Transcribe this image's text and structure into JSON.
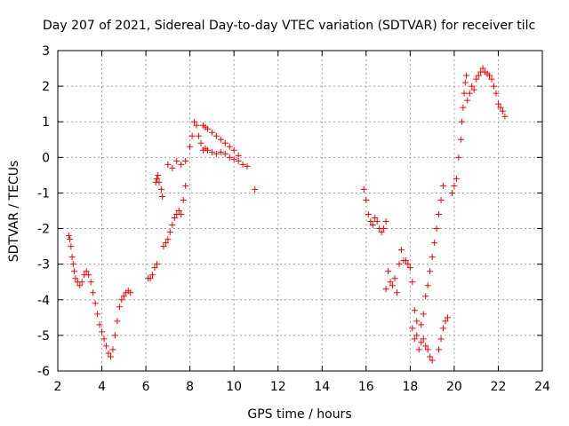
{
  "chart_data": {
    "type": "scatter",
    "title": "Day 207 of 2021, Sidereal Day-to-day VTEC variation (SDTVAR) for receiver tilc",
    "xlabel": "GPS time / hours",
    "ylabel": "SDTVAR / TECUs",
    "xlim": [
      2,
      24
    ],
    "ylim": [
      -6,
      3
    ],
    "xticks": [
      2,
      4,
      6,
      8,
      10,
      12,
      14,
      16,
      18,
      20,
      22,
      24
    ],
    "yticks": [
      -6,
      -5,
      -4,
      -3,
      -2,
      -1,
      0,
      1,
      2,
      3
    ],
    "grid": true,
    "marker": "+",
    "marker_color": "#ff0000",
    "series": [
      {
        "name": "SDTVAR",
        "points": [
          [
            2.5,
            -2.2
          ],
          [
            2.55,
            -2.3
          ],
          [
            2.6,
            -2.5
          ],
          [
            2.65,
            -2.8
          ],
          [
            2.7,
            -3.0
          ],
          [
            2.75,
            -3.2
          ],
          [
            2.8,
            -3.4
          ],
          [
            2.9,
            -3.5
          ],
          [
            3.0,
            -3.6
          ],
          [
            3.1,
            -3.5
          ],
          [
            3.2,
            -3.3
          ],
          [
            3.3,
            -3.2
          ],
          [
            3.4,
            -3.3
          ],
          [
            3.5,
            -3.5
          ],
          [
            3.6,
            -3.8
          ],
          [
            3.7,
            -4.1
          ],
          [
            3.8,
            -4.4
          ],
          [
            3.9,
            -4.7
          ],
          [
            4.0,
            -4.9
          ],
          [
            4.1,
            -5.1
          ],
          [
            4.2,
            -5.3
          ],
          [
            4.3,
            -5.5
          ],
          [
            4.4,
            -5.6
          ],
          [
            4.5,
            -5.4
          ],
          [
            4.6,
            -5.0
          ],
          [
            4.7,
            -4.6
          ],
          [
            4.8,
            -4.2
          ],
          [
            4.9,
            -4.0
          ],
          [
            5.0,
            -3.9
          ],
          [
            5.1,
            -3.8
          ],
          [
            5.2,
            -3.75
          ],
          [
            5.3,
            -3.8
          ],
          [
            6.1,
            -3.4
          ],
          [
            6.2,
            -3.4
          ],
          [
            6.3,
            -3.3
          ],
          [
            6.4,
            -3.1
          ],
          [
            6.5,
            -3.0
          ],
          [
            6.45,
            -0.7
          ],
          [
            6.5,
            -0.6
          ],
          [
            6.55,
            -0.5
          ],
          [
            6.6,
            -0.7
          ],
          [
            6.7,
            -0.9
          ],
          [
            6.75,
            -1.1
          ],
          [
            6.8,
            -2.5
          ],
          [
            6.9,
            -2.4
          ],
          [
            7.0,
            -2.3
          ],
          [
            7.1,
            -2.1
          ],
          [
            7.2,
            -1.9
          ],
          [
            7.3,
            -1.7
          ],
          [
            7.4,
            -1.6
          ],
          [
            7.5,
            -1.5
          ],
          [
            7.6,
            -1.6
          ],
          [
            7.7,
            -1.2
          ],
          [
            7.8,
            -0.8
          ],
          [
            7.0,
            -0.2
          ],
          [
            7.2,
            -0.3
          ],
          [
            7.4,
            -0.1
          ],
          [
            7.6,
            -0.2
          ],
          [
            7.8,
            -0.1
          ],
          [
            8.0,
            0.3
          ],
          [
            8.1,
            0.6
          ],
          [
            8.2,
            1.0
          ],
          [
            8.3,
            0.9
          ],
          [
            8.4,
            0.6
          ],
          [
            8.5,
            0.4
          ],
          [
            8.6,
            0.2
          ],
          [
            8.7,
            0.25
          ],
          [
            8.8,
            0.2
          ],
          [
            9.0,
            0.15
          ],
          [
            9.2,
            0.1
          ],
          [
            9.4,
            0.15
          ],
          [
            9.6,
            0.1
          ],
          [
            9.8,
            0.0
          ],
          [
            10.0,
            -0.05
          ],
          [
            10.2,
            -0.1
          ],
          [
            10.4,
            -0.2
          ],
          [
            10.6,
            -0.25
          ],
          [
            8.6,
            0.9
          ],
          [
            8.7,
            0.85
          ],
          [
            8.8,
            0.8
          ],
          [
            9.0,
            0.7
          ],
          [
            9.2,
            0.6
          ],
          [
            9.4,
            0.5
          ],
          [
            9.6,
            0.4
          ],
          [
            9.8,
            0.3
          ],
          [
            10.0,
            0.2
          ],
          [
            10.2,
            0.05
          ],
          [
            10.95,
            -0.9
          ],
          [
            15.9,
            -0.9
          ],
          [
            16.0,
            -1.2
          ],
          [
            16.1,
            -1.6
          ],
          [
            16.2,
            -1.8
          ],
          [
            16.3,
            -1.9
          ],
          [
            16.4,
            -1.7
          ],
          [
            16.5,
            -1.8
          ],
          [
            16.6,
            -2.0
          ],
          [
            16.7,
            -2.1
          ],
          [
            16.8,
            -2.0
          ],
          [
            16.9,
            -1.8
          ],
          [
            16.9,
            -3.7
          ],
          [
            17.0,
            -3.2
          ],
          [
            17.1,
            -3.5
          ],
          [
            17.2,
            -3.6
          ],
          [
            17.3,
            -3.4
          ],
          [
            17.4,
            -3.8
          ],
          [
            17.5,
            -3.0
          ],
          [
            17.6,
            -2.6
          ],
          [
            17.7,
            -2.9
          ],
          [
            17.8,
            -2.9
          ],
          [
            17.9,
            -3.0
          ],
          [
            18.0,
            -3.1
          ],
          [
            18.1,
            -3.5
          ],
          [
            18.2,
            -4.3
          ],
          [
            18.3,
            -5.0
          ],
          [
            18.4,
            -5.4
          ],
          [
            18.5,
            -5.2
          ],
          [
            18.6,
            -5.1
          ],
          [
            18.7,
            -5.3
          ],
          [
            18.8,
            -5.4
          ],
          [
            18.9,
            -5.6
          ],
          [
            19.0,
            -5.7
          ],
          [
            18.1,
            -4.8
          ],
          [
            18.2,
            -5.1
          ],
          [
            18.3,
            -4.6
          ],
          [
            18.5,
            -4.7
          ],
          [
            18.6,
            -4.4
          ],
          [
            18.7,
            -3.9
          ],
          [
            18.8,
            -3.6
          ],
          [
            18.9,
            -3.2
          ],
          [
            19.0,
            -2.8
          ],
          [
            19.1,
            -2.4
          ],
          [
            19.2,
            -2.0
          ],
          [
            19.3,
            -1.6
          ],
          [
            19.4,
            -1.2
          ],
          [
            19.5,
            -0.8
          ],
          [
            19.3,
            -5.4
          ],
          [
            19.4,
            -5.1
          ],
          [
            19.5,
            -4.8
          ],
          [
            19.6,
            -4.6
          ],
          [
            19.7,
            -4.5
          ],
          [
            19.9,
            -1.0
          ],
          [
            20.0,
            -0.8
          ],
          [
            20.1,
            -0.6
          ],
          [
            20.2,
            0.0
          ],
          [
            20.3,
            0.5
          ],
          [
            20.35,
            1.0
          ],
          [
            20.4,
            1.4
          ],
          [
            20.45,
            1.8
          ],
          [
            20.5,
            2.1
          ],
          [
            20.55,
            2.3
          ],
          [
            20.6,
            1.6
          ],
          [
            20.7,
            1.8
          ],
          [
            20.8,
            2.0
          ],
          [
            20.9,
            1.9
          ],
          [
            21.0,
            2.2
          ],
          [
            21.1,
            2.3
          ],
          [
            21.2,
            2.4
          ],
          [
            21.3,
            2.5
          ],
          [
            21.4,
            2.4
          ],
          [
            21.5,
            2.35
          ],
          [
            21.6,
            2.3
          ],
          [
            21.7,
            2.2
          ],
          [
            21.8,
            2.0
          ],
          [
            21.9,
            1.8
          ],
          [
            22.0,
            1.5
          ],
          [
            22.1,
            1.4
          ],
          [
            22.2,
            1.3
          ],
          [
            22.3,
            1.15
          ]
        ]
      }
    ]
  }
}
